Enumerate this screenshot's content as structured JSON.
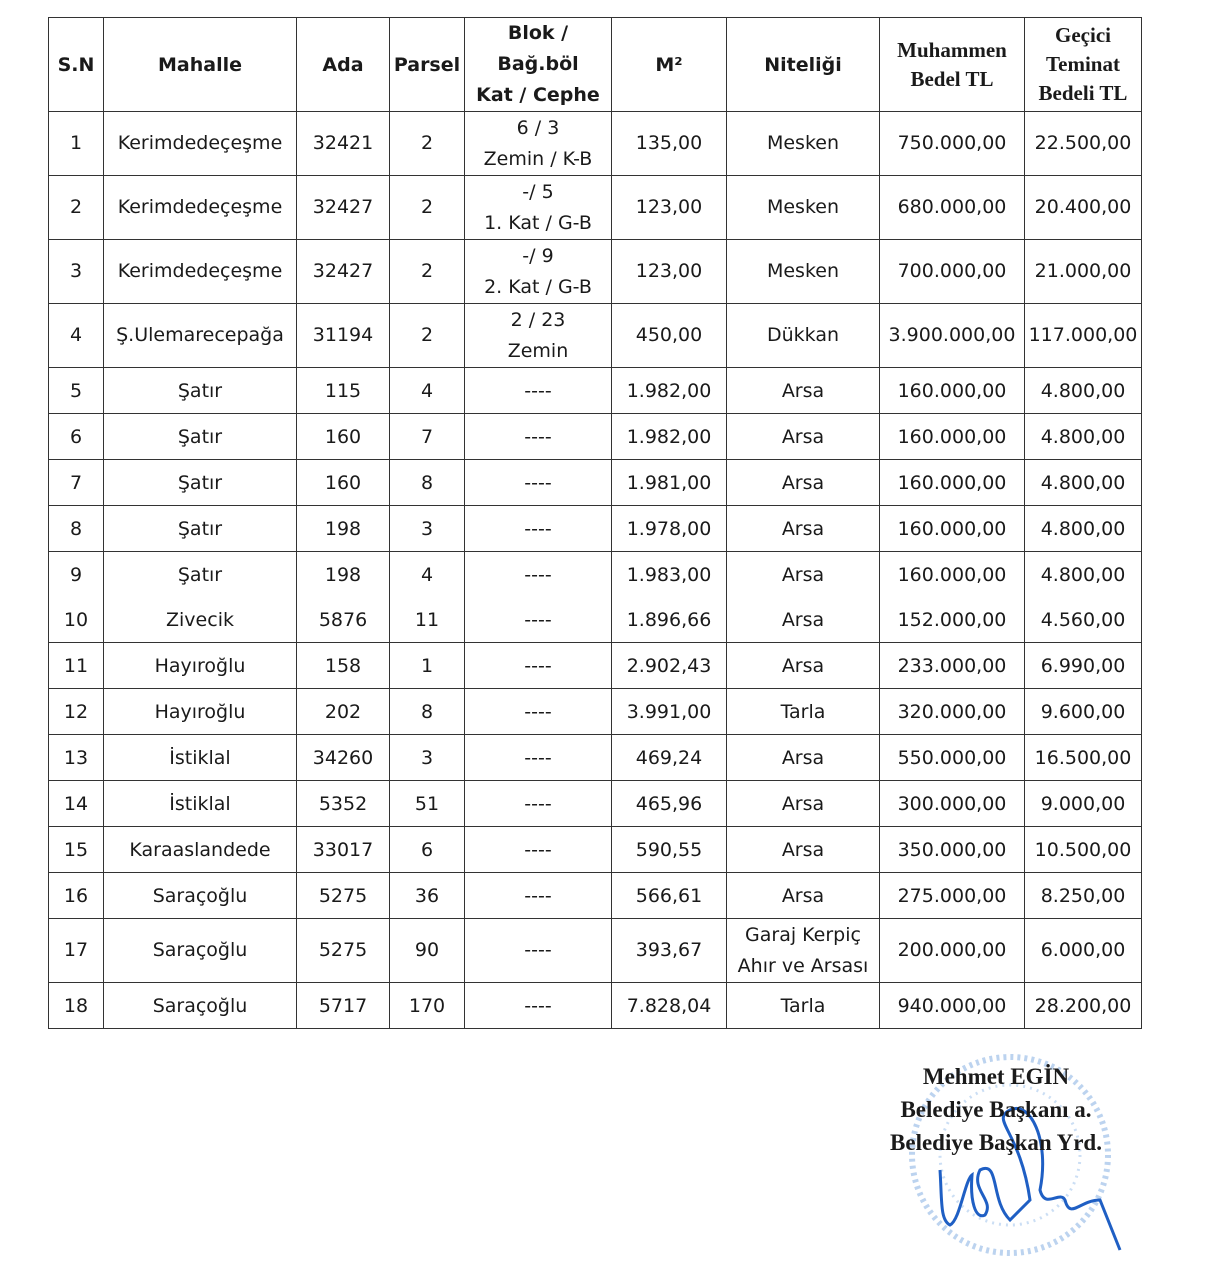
{
  "table": {
    "headers": [
      "S.N",
      "Mahalle",
      "Ada",
      "Parsel",
      "Blok / Bağ.böl\nKat / Cephe",
      "M²",
      "Niteliği",
      "Muhammen\nBedel TL",
      "Geçici\nTeminat\nBedeli TL"
    ],
    "rows": [
      {
        "sn": "1",
        "mahalle": "Kerimdedeçeşme",
        "ada": "32421",
        "parsel": "2",
        "blok": "6 / 3",
        "kat": "Zemin / K-B",
        "m2": "135,00",
        "nitelik": "Mesken",
        "nitelik2": "",
        "bedel": "750.000,00",
        "teminat": "22.500,00"
      },
      {
        "sn": "2",
        "mahalle": "Kerimdedeçeşme",
        "ada": "32427",
        "parsel": "2",
        "blok": "-/ 5",
        "kat": "1. Kat / G-B",
        "m2": "123,00",
        "nitelik": "Mesken",
        "nitelik2": "",
        "bedel": "680.000,00",
        "teminat": "20.400,00"
      },
      {
        "sn": "3",
        "mahalle": "Kerimdedeçeşme",
        "ada": "32427",
        "parsel": "2",
        "blok": "-/ 9",
        "kat": "2. Kat / G-B",
        "m2": "123,00",
        "nitelik": "Mesken",
        "nitelik2": "",
        "bedel": "700.000,00",
        "teminat": "21.000,00"
      },
      {
        "sn": "4",
        "mahalle": "Ş.Ulemarecepağa",
        "ada": "31194",
        "parsel": "2",
        "blok": "2 / 23",
        "kat": "Zemin",
        "m2": "450,00",
        "nitelik": "Dükkan",
        "nitelik2": "",
        "bedel": "3.900.000,00",
        "teminat": "117.000,00"
      },
      {
        "sn": "5",
        "mahalle": "Şatır",
        "ada": "115",
        "parsel": "4",
        "blok": "----",
        "kat": "",
        "m2": "1.982,00",
        "nitelik": "Arsa",
        "nitelik2": "",
        "bedel": "160.000,00",
        "teminat": "4.800,00"
      },
      {
        "sn": "6",
        "mahalle": "Şatır",
        "ada": "160",
        "parsel": "7",
        "blok": "----",
        "kat": "",
        "m2": "1.982,00",
        "nitelik": "Arsa",
        "nitelik2": "",
        "bedel": "160.000,00",
        "teminat": "4.800,00"
      },
      {
        "sn": "7",
        "mahalle": "Şatır",
        "ada": "160",
        "parsel": "8",
        "blok": "----",
        "kat": "",
        "m2": "1.981,00",
        "nitelik": "Arsa",
        "nitelik2": "",
        "bedel": "160.000,00",
        "teminat": "4.800,00"
      },
      {
        "sn": "8",
        "mahalle": "Şatır",
        "ada": "198",
        "parsel": "3",
        "blok": "----",
        "kat": "",
        "m2": "1.978,00",
        "nitelik": "Arsa",
        "nitelik2": "",
        "bedel": "160.000,00",
        "teminat": "4.800,00"
      },
      {
        "sn": "9",
        "mahalle": "Şatır",
        "ada": "198",
        "parsel": "4",
        "blok": "----",
        "kat": "",
        "m2": "1.983,00",
        "nitelik": "Arsa",
        "nitelik2": "",
        "bedel": "160.000,00",
        "teminat": "4.800,00"
      },
      {
        "sn": "10",
        "mahalle": "Zivecik",
        "ada": "5876",
        "parsel": "11",
        "blok": "----",
        "kat": "",
        "m2": "1.896,66",
        "nitelik": "Arsa",
        "nitelik2": "",
        "bedel": "152.000,00",
        "teminat": "4.560,00"
      },
      {
        "sn": "11",
        "mahalle": "Hayıroğlu",
        "ada": "158",
        "parsel": "1",
        "blok": "----",
        "kat": "",
        "m2": "2.902,43",
        "nitelik": "Arsa",
        "nitelik2": "",
        "bedel": "233.000,00",
        "teminat": "6.990,00"
      },
      {
        "sn": "12",
        "mahalle": "Hayıroğlu",
        "ada": "202",
        "parsel": "8",
        "blok": "----",
        "kat": "",
        "m2": "3.991,00",
        "nitelik": "Tarla",
        "nitelik2": "",
        "bedel": "320.000,00",
        "teminat": "9.600,00"
      },
      {
        "sn": "13",
        "mahalle": "İstiklal",
        "ada": "34260",
        "parsel": "3",
        "blok": "----",
        "kat": "",
        "m2": "469,24",
        "nitelik": "Arsa",
        "nitelik2": "",
        "bedel": "550.000,00",
        "teminat": "16.500,00"
      },
      {
        "sn": "14",
        "mahalle": "İstiklal",
        "ada": "5352",
        "parsel": "51",
        "blok": "----",
        "kat": "",
        "m2": "465,96",
        "nitelik": "Arsa",
        "nitelik2": "",
        "bedel": "300.000,00",
        "teminat": "9.000,00"
      },
      {
        "sn": "15",
        "mahalle": "Karaaslandede",
        "ada": "33017",
        "parsel": "6",
        "blok": "----",
        "kat": "",
        "m2": "590,55",
        "nitelik": "Arsa",
        "nitelik2": "",
        "bedel": "350.000,00",
        "teminat": "10.500,00"
      },
      {
        "sn": "16",
        "mahalle": "Saraçoğlu",
        "ada": "5275",
        "parsel": "36",
        "blok": "----",
        "kat": "",
        "m2": "566,61",
        "nitelik": "Arsa",
        "nitelik2": "",
        "bedel": "275.000,00",
        "teminat": "8.250,00"
      },
      {
        "sn": "17",
        "mahalle": "Saraçoğlu",
        "ada": "5275",
        "parsel": "90",
        "blok": "----",
        "kat": "",
        "m2": "393,67",
        "nitelik": "Garaj Kerpiç",
        "nitelik2": "Ahır ve Arsası",
        "bedel": "200.000,00",
        "teminat": "6.000,00"
      },
      {
        "sn": "18",
        "mahalle": "Saraçoğlu",
        "ada": "5717",
        "parsel": "170",
        "blok": "----",
        "kat": "",
        "m2": "7.828,04",
        "nitelik": "Tarla",
        "nitelik2": "",
        "bedel": "940.000,00",
        "teminat": "28.200,00"
      }
    ]
  },
  "signature": {
    "name": "Mehmet EGİN",
    "title1": "Belediye Başkanı a.",
    "title2": "Belediye Başkan Yrd."
  },
  "colors": {
    "ink": "#1a1a1a",
    "stamp": "#6fa0d8",
    "signature": "#1f5fc4"
  }
}
